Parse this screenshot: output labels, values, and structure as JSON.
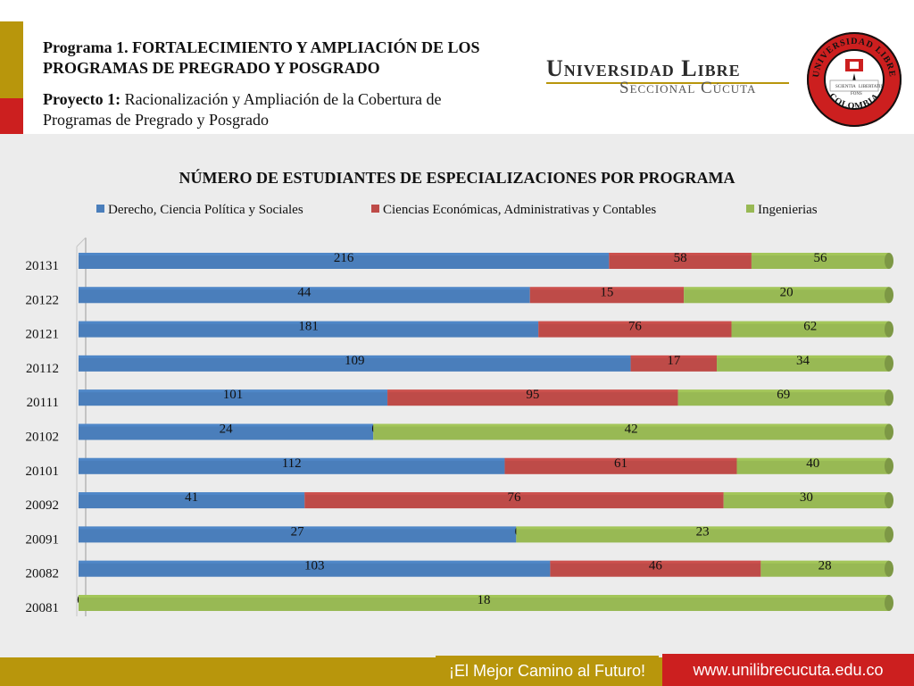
{
  "header": {
    "program_title": "Programa 1. FORTALECIMIENTO Y AMPLIACIÓN DE LOS PROGRAMAS DE PREGRADO Y POSGRADO",
    "project_label": "Proyecto 1:",
    "project_text": " Racionalización y Ampliación de la Cobertura de Programas de Pregrado y Posgrado",
    "university_name": "Universidad Libre",
    "university_branch": "Seccional Cúcuta",
    "seal_top_text": "UNIVERSIDAD LIBRE",
    "seal_bottom_text": "COLOMBIA",
    "seal_words": [
      "SCIENTIA",
      "FONS",
      "LIBERTATIS"
    ]
  },
  "footer": {
    "slogan": "¡El Mejor Camino al Futuro!",
    "website": "www.unilibrecucuta.edu.co"
  },
  "colors": {
    "blue": "#4a7ebb",
    "red": "#be4b48",
    "green": "#98b954",
    "gold": "#b8960c",
    "accent_red": "#cc1f1f"
  },
  "chart_data": {
    "type": "bar",
    "orientation": "horizontal",
    "stacked": "100%",
    "title": "NÚMERO DE ESTUDIANTES DE ESPECIALIZACIONES POR PROGRAMA",
    "legend_position": "top",
    "categories": [
      "20131",
      "20122",
      "20121",
      "20112",
      "20111",
      "20102",
      "20101",
      "20092",
      "20091",
      "20082",
      "20081"
    ],
    "series": [
      {
        "name": "Derecho, Ciencia Política y Sociales",
        "color": "#4a7ebb",
        "values": [
          216,
          44,
          181,
          109,
          101,
          24,
          112,
          41,
          27,
          103,
          0
        ]
      },
      {
        "name": "Ciencias Económicas, Administrativas y Contables",
        "color": "#be4b48",
        "values": [
          58,
          15,
          76,
          17,
          95,
          0,
          61,
          76,
          0,
          46,
          null
        ]
      },
      {
        "name": "Ingenierias",
        "color": "#98b954",
        "values": [
          56,
          20,
          62,
          34,
          69,
          42,
          40,
          30,
          23,
          28,
          18
        ]
      }
    ]
  }
}
